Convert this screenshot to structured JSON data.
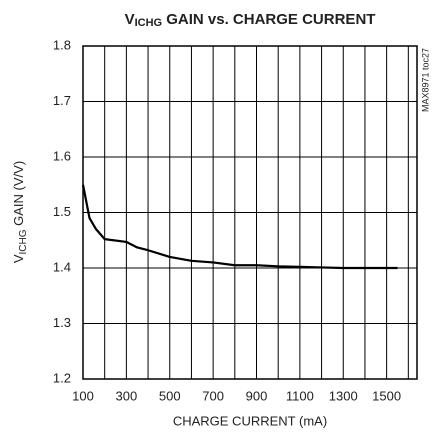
{
  "chart_data": {
    "type": "line",
    "title_parts": [
      "V",
      "ICHG",
      " GAIN vs. CHARGE CURRENT"
    ],
    "ylabel_parts": [
      "V",
      "ICHG",
      " GAIN (V/V)"
    ],
    "xlabel": "CHARGE CURRENT (mA)",
    "side_note": "MAX8971 toc27",
    "x": [
      100,
      130,
      160,
      200,
      300,
      350,
      400,
      500,
      600,
      700,
      800,
      900,
      1000,
      1100,
      1200,
      1300,
      1400,
      1500,
      1550
    ],
    "series": [
      {
        "color": "#000000",
        "values": [
          1.55,
          1.49,
          1.47,
          1.452,
          1.447,
          1.437,
          1.432,
          1.42,
          1.413,
          1.41,
          1.405,
          1.405,
          1.403,
          1.402,
          1.401,
          1.4,
          1.4,
          1.4,
          1.4
        ]
      }
    ],
    "xlim": [
      100,
      1640
    ],
    "xticks": [
      100,
      300,
      500,
      700,
      900,
      1100,
      1300,
      1500
    ],
    "xgrid": [
      200,
      400,
      600,
      800,
      1000,
      1200,
      1400,
      1600
    ],
    "ylim": [
      1.2,
      1.8
    ],
    "yticks": [
      1.2,
      1.3,
      1.4,
      1.5,
      1.6,
      1.7,
      1.8
    ],
    "grid": true
  }
}
